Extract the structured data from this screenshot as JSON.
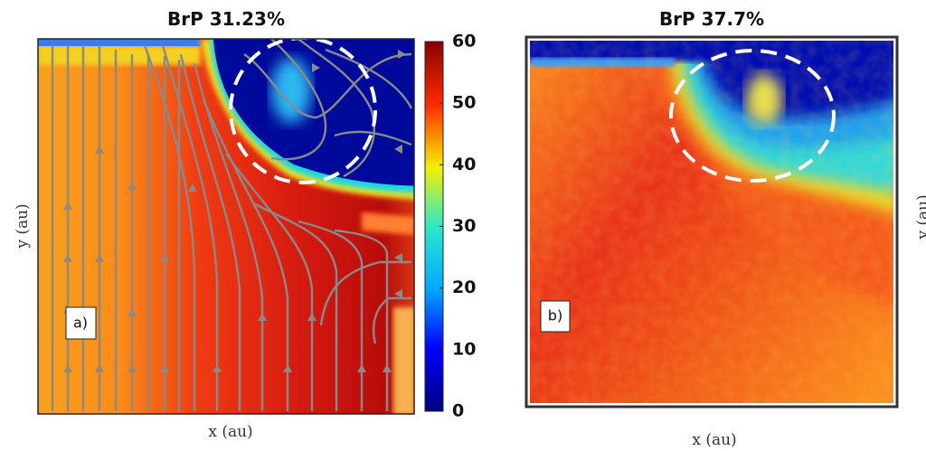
{
  "chart_data": [
    {
      "type": "heatmap",
      "title": "BrP 31.23%",
      "xlabel": "x (au)",
      "ylabel": "y (au)",
      "panel_label": "a)",
      "colorbar": {
        "lim": [
          0,
          60
        ],
        "ticks": [
          0,
          10,
          20,
          30,
          40,
          50,
          60
        ]
      }
    },
    {
      "type": "heatmap",
      "title": "BrP 37.7%",
      "xlabel": "x (au)",
      "panel_label": "b)"
    },
    {
      "type": "heatmap",
      "ylabel": "y (au)"
    }
  ]
}
